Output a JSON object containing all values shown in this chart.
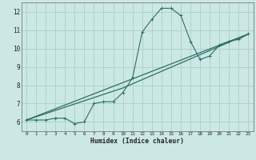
{
  "xlabel": "Humidex (Indice chaleur)",
  "ylabel": "",
  "bg_color": "#cce8e4",
  "grid_color": "#aad4cc",
  "line_color": "#2d6e66",
  "xlim": [
    -0.5,
    23.5
  ],
  "ylim": [
    5.5,
    12.5
  ],
  "xticks": [
    0,
    1,
    2,
    3,
    4,
    5,
    6,
    7,
    8,
    9,
    10,
    11,
    12,
    13,
    14,
    15,
    16,
    17,
    18,
    19,
    20,
    21,
    22,
    23
  ],
  "yticks": [
    6,
    7,
    8,
    9,
    10,
    11,
    12
  ],
  "series1_x": [
    0,
    1,
    2,
    3,
    4,
    5,
    6,
    7,
    8,
    9,
    10,
    11,
    12,
    13,
    14,
    15,
    16,
    17,
    18,
    19,
    20,
    21,
    22,
    23
  ],
  "series1_y": [
    6.1,
    6.1,
    6.1,
    6.2,
    6.2,
    5.9,
    6.0,
    7.0,
    7.1,
    7.1,
    7.6,
    8.4,
    10.9,
    11.6,
    12.2,
    12.2,
    11.8,
    10.4,
    9.4,
    9.6,
    10.2,
    10.4,
    10.5,
    10.8
  ],
  "series2_x": [
    0,
    23
  ],
  "series2_y": [
    6.1,
    10.8
  ],
  "series3_x": [
    0,
    10,
    23
  ],
  "series3_y": [
    6.1,
    7.85,
    10.8
  ]
}
